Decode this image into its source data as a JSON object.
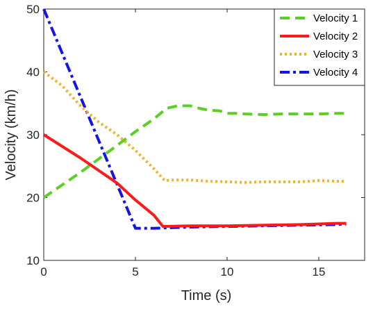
{
  "chart_data": {
    "type": "line",
    "title": "",
    "xlabel": "Time (s)",
    "ylabel": "Velocity (km/h)",
    "xlim": [
      0,
      17.5
    ],
    "ylim": [
      10,
      50
    ],
    "xticks": [
      0,
      5,
      10,
      15
    ],
    "yticks": [
      10,
      20,
      30,
      40,
      50
    ],
    "grid": false,
    "legend_position": "top-right",
    "series": [
      {
        "name": "Velocity 1",
        "color": "#5ccf24",
        "dash": "dashed",
        "x": [
          0,
          2,
          4,
          5,
          6,
          6.7,
          7.3,
          8,
          8.5,
          9,
          9.6,
          10,
          10.5,
          11,
          12,
          13,
          14,
          15,
          16,
          16.5
        ],
        "y": [
          20,
          24,
          28.3,
          30.5,
          32.5,
          34.2,
          34.6,
          34.6,
          34.2,
          33.9,
          33.8,
          33.4,
          33.4,
          33.3,
          33.2,
          33.3,
          33.3,
          33.3,
          33.4,
          33.4
        ]
      },
      {
        "name": "Velocity 2",
        "color": "#ff1a1a",
        "dash": "solid",
        "x": [
          0,
          2,
          4,
          5,
          6,
          6.5,
          8,
          10,
          12,
          14,
          16,
          16.5
        ],
        "y": [
          30,
          26.3,
          22.3,
          19.6,
          17.2,
          15.4,
          15.5,
          15.5,
          15.6,
          15.7,
          15.9,
          15.9
        ]
      },
      {
        "name": "Velocity 3",
        "color": "#f0b429",
        "dash": "dotted",
        "x": [
          0,
          1,
          2,
          3,
          4,
          5,
          6,
          6.6,
          7,
          8,
          9,
          10,
          11,
          12,
          13,
          14,
          15,
          16,
          16.5
        ],
        "y": [
          40,
          37.8,
          34.6,
          32,
          30,
          27.5,
          24.6,
          22.7,
          22.8,
          22.8,
          22.6,
          22.5,
          22.4,
          22.5,
          22.5,
          22.5,
          22.7,
          22.6,
          22.6
        ]
      },
      {
        "name": "Velocity 4",
        "color": "#1414e6",
        "dash": "dashdot",
        "x": [
          0,
          5,
          6,
          8,
          10,
          12,
          14,
          16,
          16.5
        ],
        "y": [
          50,
          15.1,
          15.1,
          15.3,
          15.4,
          15.5,
          15.6,
          15.7,
          15.8
        ]
      }
    ]
  }
}
